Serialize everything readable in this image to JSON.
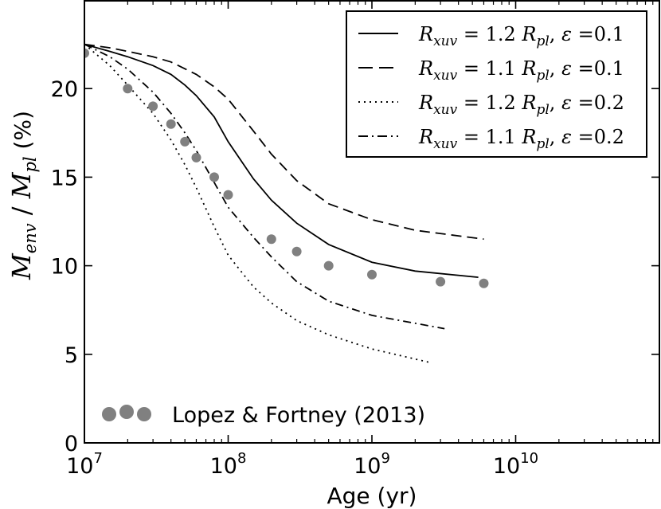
{
  "chart_data": {
    "type": "line",
    "xscale": "log",
    "xlim": [
      10000000,
      100000000000
    ],
    "ylim": [
      0,
      25
    ],
    "xlabel": "Age (yr)",
    "ylabel": {
      "main_sub": "env",
      "denom_sub": "pl",
      "unit": "(%)"
    },
    "x_ticks": [
      {
        "base": "10",
        "exp": "7",
        "value": 10000000
      },
      {
        "base": "10",
        "exp": "8",
        "value": 100000000
      },
      {
        "base": "10",
        "exp": "9",
        "value": 1000000000
      },
      {
        "base": "10",
        "exp": "10",
        "value": 10000000000
      }
    ],
    "y_ticks": [
      "0",
      "5",
      "10",
      "15",
      "20"
    ],
    "series": [
      {
        "name": "R_xuv = 1.2 R_pl, ε = 0.1",
        "legend": {
          "coef": "1.2",
          "eps": "0.1"
        },
        "style": "solid",
        "x": [
          10000000.0,
          15000000.0,
          20000000.0,
          30000000.0,
          40000000.0,
          50000000.0,
          60000000.0,
          80000000.0,
          100000000.0,
          150000000.0,
          200000000.0,
          300000000.0,
          500000000.0,
          1000000000.0,
          2000000000.0,
          5500000000.0
        ],
        "y": [
          22.5,
          22.1,
          21.8,
          21.3,
          20.8,
          20.2,
          19.6,
          18.4,
          17.0,
          14.9,
          13.7,
          12.4,
          11.2,
          10.2,
          9.7,
          9.35
        ]
      },
      {
        "name": "R_xuv = 1.1 R_pl, ε = 0.1",
        "legend": {
          "coef": "1.1",
          "eps": "0.1"
        },
        "style": "dashed",
        "x": [
          10000000.0,
          15000000.0,
          20000000.0,
          30000000.0,
          40000000.0,
          60000000.0,
          80000000.0,
          100000000.0,
          150000000.0,
          200000000.0,
          300000000.0,
          500000000.0,
          1000000000.0,
          2000000000.0,
          6000000000.0
        ],
        "y": [
          22.5,
          22.3,
          22.1,
          21.8,
          21.5,
          20.8,
          20.1,
          19.4,
          17.6,
          16.3,
          14.8,
          13.5,
          12.6,
          12.0,
          11.5
        ]
      },
      {
        "name": "R_xuv = 1.2 R_pl, ε = 0.2",
        "legend": {
          "coef": "1.2",
          "eps": "0.2"
        },
        "style": "dotted",
        "x": [
          10000000.0,
          15000000.0,
          20000000.0,
          30000000.0,
          40000000.0,
          50000000.0,
          60000000.0,
          80000000.0,
          100000000.0,
          150000000.0,
          200000000.0,
          300000000.0,
          500000000.0,
          1000000000.0,
          2500000000.0
        ],
        "y": [
          22.5,
          21.3,
          20.2,
          18.6,
          17.1,
          15.7,
          14.4,
          12.2,
          10.6,
          8.8,
          7.9,
          6.9,
          6.1,
          5.3,
          4.55
        ]
      },
      {
        "name": "R_xuv = 1.1 R_pl, ε = 0.2",
        "legend": {
          "coef": "1.1",
          "eps": "0.2"
        },
        "style": "dashdot",
        "x": [
          10000000.0,
          15000000.0,
          20000000.0,
          30000000.0,
          40000000.0,
          50000000.0,
          60000000.0,
          80000000.0,
          100000000.0,
          150000000.0,
          200000000.0,
          300000000.0,
          500000000.0,
          1000000000.0,
          3200000000.0
        ],
        "y": [
          22.5,
          21.8,
          21.1,
          19.8,
          18.6,
          17.5,
          16.5,
          14.7,
          13.3,
          11.6,
          10.5,
          9.1,
          8.0,
          7.2,
          6.45
        ]
      }
    ],
    "points": {
      "name": "Lopez & Fortney (2013)",
      "x": [
        10000000.0,
        20000000.0,
        30000000.0,
        40000000.0,
        50000000.0,
        60000000.0,
        80000000.0,
        100000000.0,
        200000000.0,
        300000000.0,
        500000000.0,
        1000000000.0,
        3000000000.0,
        6000000000.0
      ],
      "y": [
        22.0,
        20.0,
        19.0,
        18.0,
        17.0,
        16.1,
        15.0,
        14.0,
        11.5,
        10.8,
        10.0,
        9.5,
        9.1,
        9.0
      ]
    },
    "legend_position": "top-right",
    "colors": {
      "lines": "#000000",
      "points": "#808080"
    }
  }
}
